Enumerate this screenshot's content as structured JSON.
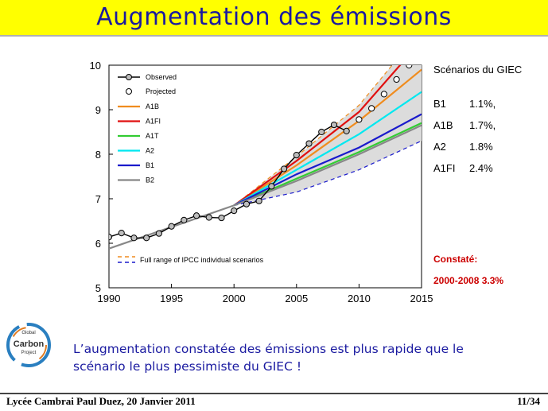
{
  "slide": {
    "title": "Augmentation des émissions",
    "caption_line1": "L’augmentation constatée des émissions est plus rapide que le",
    "caption_line2": "scénario le plus pessimiste du GIEC !",
    "footer_left": "Lycée Cambrai Paul Duez, 20 Janvier 2011",
    "page_number": "11/34",
    "colors": {
      "title_bg": "#ffff00",
      "title_text": "#1a1aa0",
      "caption_text": "#1a1aa0"
    }
  },
  "logo": {
    "line1": "Global",
    "line2": "Carbon",
    "line3": "Project",
    "icon": "global-carbon-project-logo"
  },
  "chart_data": {
    "type": "line",
    "xlim": [
      1990,
      2015
    ],
    "ylim": [
      5,
      10
    ],
    "xticks": [
      "1990",
      "1995",
      "2000",
      "2005",
      "2010",
      "2015"
    ],
    "yticks": [
      "5",
      "6",
      "7",
      "8",
      "9",
      "10"
    ],
    "legend": {
      "observed": "Observed",
      "projected": "Projected",
      "range": "Full range of IPCC individual scenarios"
    },
    "observed": {
      "x": [
        1990,
        1991,
        1992,
        1993,
        1994,
        1995,
        1996,
        1997,
        1998,
        1999,
        2000,
        2001,
        2002,
        2003,
        2004,
        2005,
        2006,
        2007,
        2008,
        2009
      ],
      "y": [
        6.14,
        6.23,
        6.12,
        6.12,
        6.22,
        6.38,
        6.52,
        6.62,
        6.58,
        6.57,
        6.73,
        6.88,
        6.95,
        7.28,
        7.67,
        7.98,
        8.24,
        8.5,
        8.66,
        8.52
      ]
    },
    "projected": {
      "x": [
        2010,
        2011,
        2012,
        2013,
        2014
      ],
      "y": [
        8.78,
        9.03,
        9.35,
        9.68,
        10.0
      ]
    },
    "series": [
      {
        "name": "A1B",
        "color": "#f08c1e",
        "x": [
          2000,
          2005,
          2010,
          2015
        ],
        "y": [
          6.85,
          7.75,
          8.75,
          9.9
        ]
      },
      {
        "name": "A1FI",
        "color": "#e01010",
        "x": [
          2000,
          2005,
          2010,
          2015
        ],
        "y": [
          6.85,
          7.85,
          8.95,
          10.55
        ]
      },
      {
        "name": "A1T",
        "color": "#33cc33",
        "x": [
          2000,
          2005,
          2010,
          2015
        ],
        "y": [
          6.85,
          7.45,
          8.05,
          8.7
        ]
      },
      {
        "name": "A2",
        "color": "#00e8f0",
        "x": [
          2000,
          2005,
          2010,
          2015
        ],
        "y": [
          6.85,
          7.65,
          8.45,
          9.4
        ]
      },
      {
        "name": "B1",
        "color": "#1a1acc",
        "x": [
          2000,
          2005,
          2010,
          2015
        ],
        "y": [
          6.85,
          7.55,
          8.15,
          8.9
        ]
      },
      {
        "name": "B2",
        "color": "#888888",
        "x": [
          1990,
          2000,
          2005,
          2010,
          2015
        ],
        "y": [
          5.88,
          6.85,
          7.4,
          8.0,
          8.65
        ]
      }
    ],
    "range_upper": {
      "x": [
        2000,
        2005,
        2010,
        2015
      ],
      "y": [
        6.85,
        7.95,
        9.1,
        10.8
      ]
    },
    "range_lower": {
      "x": [
        2000,
        2005,
        2010,
        2015
      ],
      "y": [
        6.85,
        7.15,
        7.65,
        8.3
      ]
    },
    "scenarios_title": "Scénarios du GIEC",
    "scenario_rates": [
      {
        "name": "B1",
        "rate": "1.1%,"
      },
      {
        "name": "A1B",
        "rate": "1.7%,"
      },
      {
        "name": "A2",
        "rate": "1.8%"
      },
      {
        "name": "A1FI",
        "rate": "2.4%"
      }
    ],
    "observed_label": "Constaté:",
    "observed_rate": "2000-2008 3.3%"
  }
}
